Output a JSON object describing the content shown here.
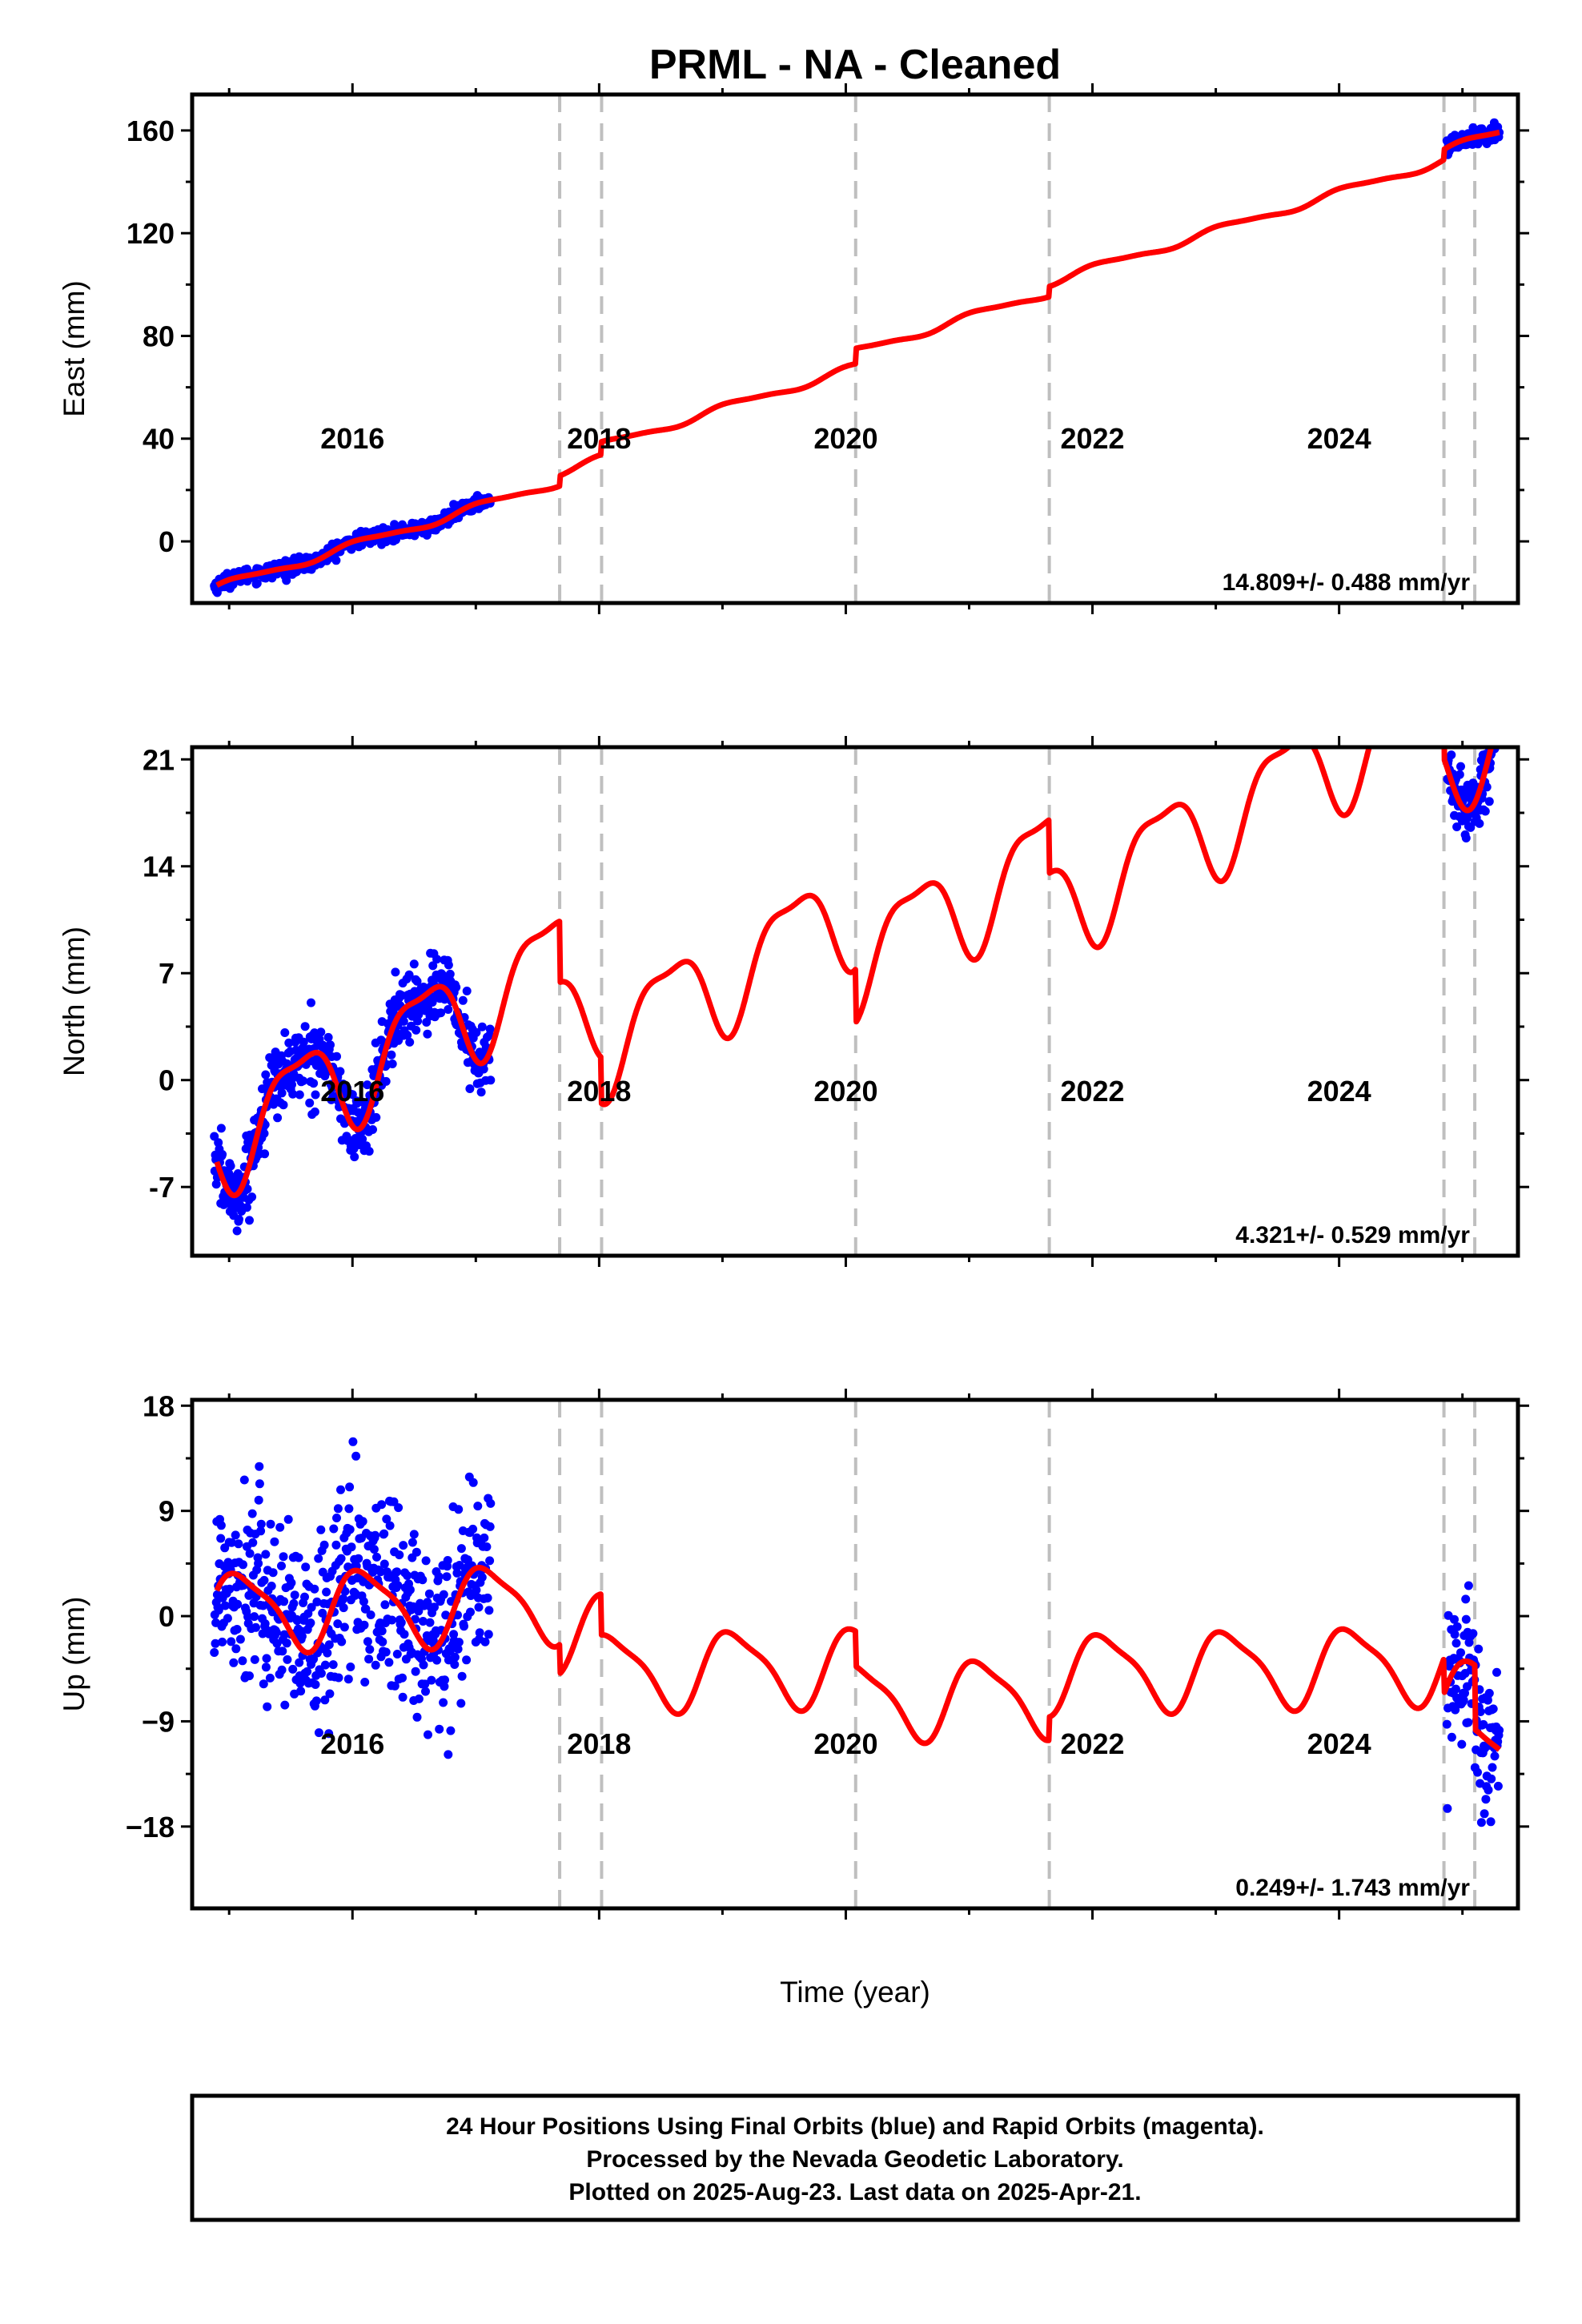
{
  "title": "PRML  - NA - Cleaned",
  "x_axis_label": "Time (year)",
  "footer": {
    "line1": "24 Hour Positions Using Final Orbits (blue) and Rapid Orbits (magenta).",
    "line2": "Processed by the Nevada Geodetic Laboratory.",
    "line3": "Plotted on 2025-Aug-23. Last data on 2025-Apr-21."
  },
  "colors": {
    "final_orbits": "#0000ff",
    "model_fit": "#ff0000",
    "offset_lines": "#bfbfbf",
    "frame": "#000000"
  },
  "chart_data": [
    {
      "type": "scatter",
      "panel": "east",
      "ylabel": "East (mm)",
      "rate_text": "14.809+/- 0.488 mm/yr",
      "xlim": [
        2014.7,
        2025.45
      ],
      "ylim": [
        -24,
        174
      ],
      "x_ticks": [
        2016,
        2018,
        2020,
        2022,
        2024
      ],
      "y_ticks": [
        0,
        40,
        80,
        120,
        160
      ],
      "y_tick_labels": [
        "0",
        "40",
        "80",
        "120",
        "160"
      ],
      "offsets": [
        2017.68,
        2018.02,
        2020.08,
        2021.65,
        2024.85,
        2025.1
      ],
      "model": {
        "t0": 2014.9,
        "y0": -18,
        "rate": 14.809,
        "annual_amp": 1.5,
        "annual_phase": 0.4,
        "semiannual_amp": 0.4,
        "semiannual_phase": 1.0,
        "steps": [
          {
            "t": 2017.68,
            "dy": 4
          },
          {
            "t": 2018.02,
            "dy": 5
          },
          {
            "t": 2020.08,
            "dy": 6
          },
          {
            "t": 2021.65,
            "dy": 4
          },
          {
            "t": 2024.85,
            "dy": 4
          },
          {
            "t": 2025.1,
            "dy": 0
          }
        ]
      },
      "data_segments": [
        {
          "start": 2014.88,
          "end": 2017.12,
          "step": 0.004,
          "noise": 1.4
        },
        {
          "start": 2024.87,
          "end": 2025.3,
          "step": 0.004,
          "noise": 1.4
        }
      ]
    },
    {
      "type": "scatter",
      "panel": "north",
      "ylabel": "North (mm)",
      "rate_text": "4.321+/- 0.529 mm/yr",
      "xlim": [
        2014.7,
        2025.45
      ],
      "ylim": [
        -11.5,
        21.8
      ],
      "x_ticks": [
        2016,
        2018,
        2020,
        2022,
        2024
      ],
      "y_ticks": [
        -7,
        0,
        7,
        14,
        21
      ],
      "y_tick_labels": [
        "-7",
        "0",
        "7",
        "14",
        "21"
      ],
      "offsets": [
        2017.68,
        2018.02,
        2020.08,
        2021.65,
        2024.85,
        2025.1
      ],
      "model": {
        "t0": 2014.9,
        "y0": -4,
        "rate": 4.321,
        "annual_amp": 3.2,
        "annual_phase": 3.7,
        "semiannual_amp": 1.0,
        "semiannual_phase": 2.8,
        "steps": [
          {
            "t": 2017.68,
            "dy": -4
          },
          {
            "t": 2018.02,
            "dy": -3
          },
          {
            "t": 2020.08,
            "dy": -3.5
          },
          {
            "t": 2021.65,
            "dy": -3.5
          },
          {
            "t": 2024.85,
            "dy": -4
          },
          {
            "t": 2025.1,
            "dy": 0
          }
        ]
      },
      "data_segments": [
        {
          "start": 2014.88,
          "end": 2017.12,
          "step": 0.004,
          "noise": 1.2
        },
        {
          "start": 2024.87,
          "end": 2025.3,
          "step": 0.004,
          "noise": 1.0
        }
      ]
    },
    {
      "type": "scatter",
      "panel": "up",
      "ylabel": "Up (mm)",
      "rate_text": "0.249+/- 1.743 mm/yr",
      "xlim": [
        2014.7,
        2025.45
      ],
      "ylim": [
        -25,
        18.5
      ],
      "x_ticks": [
        2016,
        2018,
        2020,
        2022,
        2024
      ],
      "y_ticks": [
        -18,
        -9,
        0,
        9,
        18
      ],
      "y_tick_labels": [
        "−18",
        "−9",
        "0",
        "9",
        "18"
      ],
      "offsets": [
        2017.68,
        2018.02,
        2020.08,
        2021.65,
        2024.85,
        2025.1
      ],
      "model": {
        "t0": 2014.9,
        "y0": 0.5,
        "rate": 0.249,
        "annual_amp": 3.2,
        "annual_phase": 0.3,
        "semiannual_amp": 0.8,
        "semiannual_phase": 1.2,
        "steps": [
          {
            "t": 2017.68,
            "dy": -2.5
          },
          {
            "t": 2018.02,
            "dy": -3.5
          },
          {
            "t": 2020.08,
            "dy": -3.0
          },
          {
            "t": 2021.65,
            "dy": 2.0
          },
          {
            "t": 2024.85,
            "dy": -3.0
          },
          {
            "t": 2025.1,
            "dy": -5.5
          }
        ]
      },
      "data_segments": [
        {
          "start": 2014.88,
          "end": 2017.12,
          "step": 0.004,
          "noise": 4.2
        },
        {
          "start": 2024.87,
          "end": 2025.3,
          "step": 0.004,
          "noise": 3.2
        }
      ]
    }
  ]
}
